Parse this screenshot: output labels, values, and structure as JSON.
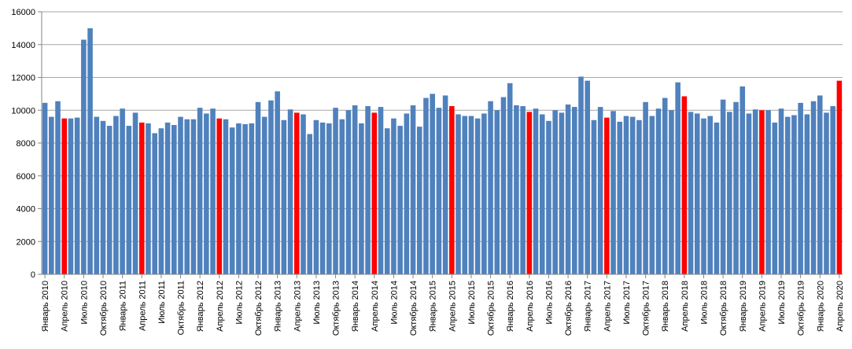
{
  "chart_data": {
    "type": "bar",
    "title": "",
    "xlabel": "",
    "ylabel": "",
    "ylim": [
      0,
      16000
    ],
    "yticks": [
      0,
      2000,
      4000,
      6000,
      8000,
      10000,
      12000,
      14000,
      16000
    ],
    "grid": "horizontal",
    "legend": "none",
    "colors": {
      "default": "#4f81bd",
      "highlight": "#ff0000",
      "grid": "#a6a6a6",
      "axis": "#868686"
    },
    "x_tick_labels": [
      "Январь 2010",
      "Апрель 2010",
      "Июль 2010",
      "Октябрь 2010",
      "Январь 2011",
      "Апрель 2011",
      "Июль 2011",
      "Октябрь 2011",
      "Январь 2012",
      "Апрель 2012",
      "Июль 2012",
      "Октябрь 2012",
      "Январь 2013",
      "Апрель 2013",
      "Июль 2013",
      "Октябрь 2013",
      "Январь 2014",
      "Апрель 2014",
      "Июль 2014",
      "Октябрь 2014",
      "Январь 2015",
      "Апрель 2015",
      "Июль 2015",
      "Октябрь 2015",
      "Январь 2016",
      "Апрель 2016",
      "Июль 2016",
      "Октябрь 2016",
      "Январь 2017",
      "Апрель 2017",
      "Июль 2017",
      "Октябрь 2017",
      "Январь 2018",
      "Апрель 2018",
      "Июль 2018",
      "Октябрь 2018",
      "Январь 2019",
      "Апрель 2019",
      "Июль 2019",
      "Октябрь 2019",
      "Январь 2020",
      "Апрель 2020"
    ],
    "values": [
      10450,
      9600,
      10550,
      9500,
      9500,
      9550,
      14300,
      15000,
      9600,
      9350,
      9050,
      9650,
      10100,
      9050,
      9850,
      9250,
      9200,
      8600,
      8900,
      9250,
      9100,
      9600,
      9450,
      9450,
      10150,
      9800,
      10100,
      9500,
      9450,
      8950,
      9200,
      9150,
      9200,
      10500,
      9600,
      10600,
      11150,
      9400,
      10050,
      9850,
      9750,
      8550,
      9400,
      9250,
      9200,
      10150,
      9450,
      10000,
      10300,
      9200,
      10250,
      9850,
      10200,
      8900,
      9500,
      9050,
      9800,
      10300,
      9000,
      10750,
      11000,
      10150,
      10900,
      10250,
      9750,
      9650,
      9650,
      9500,
      9800,
      10550,
      10000,
      10800,
      11650,
      10300,
      10250,
      9900,
      10100,
      9750,
      9350,
      10000,
      9850,
      10350,
      10200,
      12050,
      11800,
      9400,
      10200,
      9550,
      9950,
      9300,
      9650,
      9600,
      9400,
      10500,
      9650,
      10100,
      10750,
      10000,
      11700,
      10850,
      9900,
      9800,
      9500,
      9650,
      9250,
      10650,
      9900,
      10500,
      11450,
      9800,
      10050,
      10000,
      10000,
      9250,
      10100,
      9600,
      9700,
      10450,
      9750,
      10550,
      10900,
      9850,
      10250,
      11800
    ],
    "highlight_indices": [
      3,
      15,
      27,
      39,
      51,
      63,
      75,
      87,
      99,
      111,
      123
    ]
  }
}
